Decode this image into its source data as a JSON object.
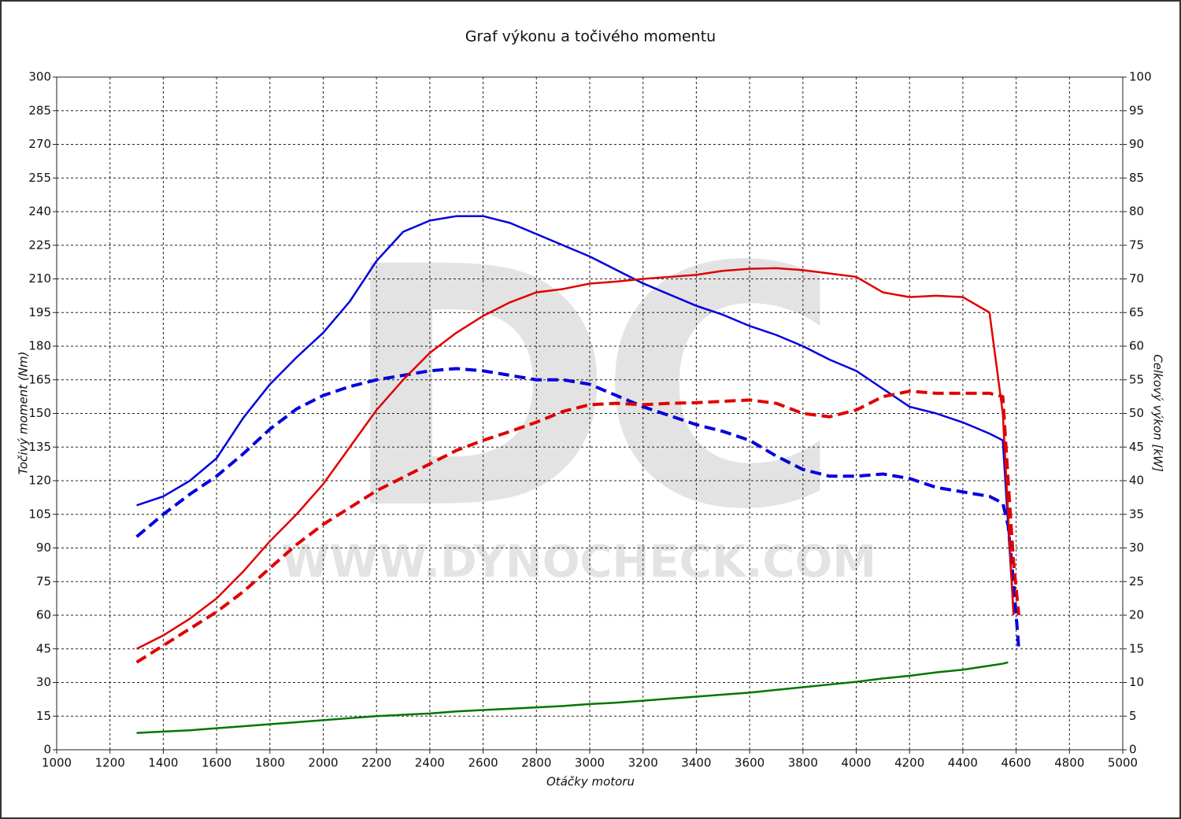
{
  "chart_data": {
    "type": "line",
    "title": "Graf výkonu a točivého momentu",
    "xlabel": "Otáčky motoru",
    "ylabel": "Točivý moment (Nm)",
    "y2label": "Celkový výkon [kW]",
    "watermark": [
      "DC",
      "WWW.DYNOCHECK.COM"
    ],
    "grid": true,
    "xlim": [
      1000,
      5000
    ],
    "xticks": [
      1000,
      1200,
      1400,
      1600,
      1800,
      2000,
      2200,
      2400,
      2600,
      2800,
      3000,
      3200,
      3400,
      3600,
      3800,
      4000,
      4200,
      4400,
      4600,
      4800,
      5000
    ],
    "ylim": [
      0,
      300
    ],
    "yticks": [
      0,
      15,
      30,
      45,
      60,
      75,
      90,
      105,
      120,
      135,
      150,
      165,
      180,
      195,
      210,
      225,
      240,
      255,
      270,
      285,
      300
    ],
    "y2lim": [
      0,
      100
    ],
    "y2ticks": [
      0,
      5,
      10,
      15,
      20,
      25,
      30,
      35,
      40,
      45,
      50,
      55,
      60,
      65,
      70,
      75,
      80,
      85,
      90,
      95,
      100
    ],
    "x": [
      1300,
      1400,
      1500,
      1600,
      1700,
      1800,
      1900,
      2000,
      2100,
      2200,
      2300,
      2400,
      2500,
      2600,
      2700,
      2800,
      2900,
      3000,
      3100,
      3200,
      3300,
      3400,
      3500,
      3600,
      3700,
      3800,
      3900,
      4000,
      4100,
      4200,
      4300,
      4400,
      4500,
      4550,
      4570,
      4590,
      4610
    ],
    "series": [
      {
        "color": "#0000dd",
        "dashed": false,
        "values": [
          109,
          113,
          120,
          130,
          148,
          163,
          175,
          186,
          200,
          218,
          231,
          236,
          238,
          238,
          235,
          230,
          225,
          220,
          214,
          208,
          203,
          198,
          194,
          189,
          185,
          180,
          174,
          169,
          161,
          153,
          150,
          146,
          141,
          138,
          100,
          62,
          null
        ]
      },
      {
        "color": "#0000dd",
        "dashed": true,
        "values": [
          95,
          105,
          114,
          122,
          132,
          143,
          152,
          158,
          162,
          165,
          167,
          169,
          170,
          169,
          167,
          165,
          165,
          163,
          158,
          153,
          149,
          145,
          142,
          138,
          131,
          125,
          122,
          122,
          123,
          121,
          117,
          115,
          113,
          110,
          100,
          75,
          45
        ]
      },
      {
        "color": "#e00000",
        "dashed": false,
        "axis": "y2",
        "values": [
          15,
          17,
          19.5,
          22.5,
          26.5,
          31,
          35,
          39.5,
          45,
          50.5,
          55,
          59,
          62,
          64.5,
          66.5,
          68,
          68.5,
          69.3,
          69.6,
          70,
          70.3,
          70.6,
          71.2,
          71.5,
          71.6,
          71.3,
          70.8,
          70.3,
          68,
          67.3,
          67.5,
          67.3,
          65,
          50,
          35,
          20,
          null
        ]
      },
      {
        "color": "#e00000",
        "dashed": true,
        "axis": "y2",
        "values": [
          13,
          15.5,
          18,
          20.5,
          23.5,
          27,
          30.5,
          33.5,
          36,
          38.5,
          40.5,
          42.5,
          44.5,
          46,
          47.3,
          48.7,
          50.3,
          51.3,
          51.5,
          51.3,
          51.5,
          51.6,
          51.8,
          52,
          51.5,
          50,
          49.5,
          50.5,
          52.5,
          53.3,
          53,
          53,
          53,
          52.5,
          40,
          28,
          20
        ]
      },
      {
        "color": "#007700",
        "dashed": false,
        "axis": "y2",
        "values": [
          2.5,
          2.7,
          2.9,
          3.2,
          3.5,
          3.8,
          4.1,
          4.4,
          4.7,
          5.0,
          5.2,
          5.4,
          5.7,
          5.9,
          6.1,
          6.3,
          6.5,
          6.8,
          7.0,
          7.3,
          7.6,
          7.9,
          8.2,
          8.5,
          8.9,
          9.3,
          9.7,
          10.1,
          10.6,
          11.0,
          11.5,
          11.9,
          12.5,
          12.8,
          13.0,
          null,
          null
        ]
      }
    ]
  }
}
